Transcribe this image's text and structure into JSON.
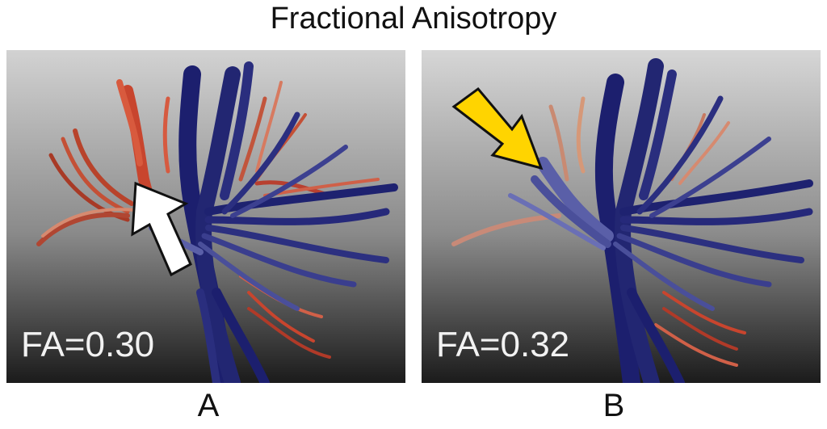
{
  "title": "Fractional Anisotropy",
  "panels": [
    {
      "letter": "A",
      "fa_label": "FA=0.30",
      "arrow_color": "#ffffff",
      "arrow_icon": "arrow-up-right-icon"
    },
    {
      "letter": "B",
      "fa_label": "FA=0.32",
      "arrow_color": "#ffd400",
      "arrow_icon": "arrow-down-right-icon"
    }
  ],
  "colors": {
    "tract_blue": "#1c1f6e",
    "tract_red": "#c8452e",
    "background_top": "#cfcfcf",
    "background_bottom": "#1a1a1a"
  }
}
